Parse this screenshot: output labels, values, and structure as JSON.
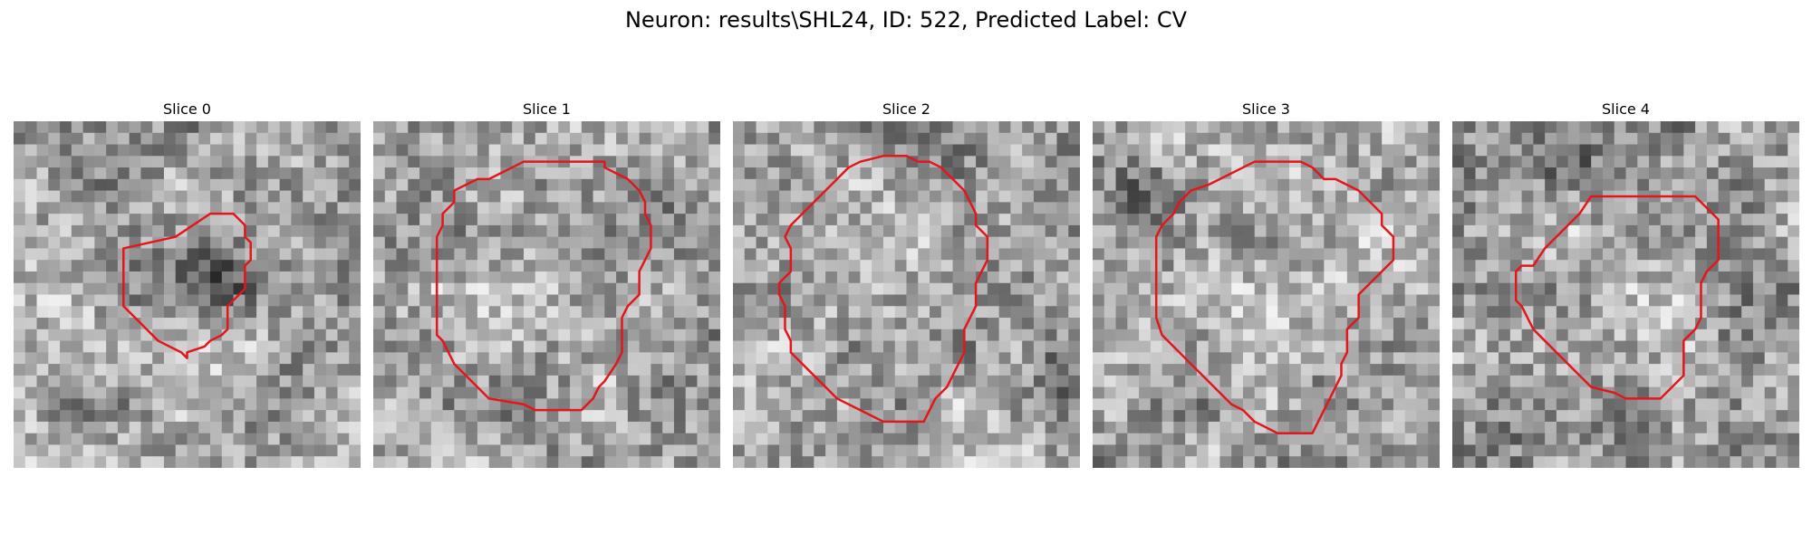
{
  "figure": {
    "title": "Neuron: results\\SHL24, ID: 522, Predicted Label: CV"
  },
  "colors": {
    "contour": "#e3161b"
  },
  "grid": {
    "cells": 30
  },
  "slices": [
    {
      "title": "Slice 0",
      "seed": 11,
      "dark_center": [
        0.55,
        0.42
      ],
      "dark_strength": 0.35,
      "contour": [
        [
          14,
          10
        ],
        [
          17,
          8
        ],
        [
          19,
          8
        ],
        [
          19.5,
          8.5
        ],
        [
          20,
          9
        ],
        [
          20,
          10
        ],
        [
          20.5,
          10.5
        ],
        [
          20.5,
          12
        ],
        [
          20,
          12.5
        ],
        [
          20,
          14.5
        ],
        [
          19.5,
          15
        ],
        [
          19,
          15.5
        ],
        [
          18.5,
          16
        ],
        [
          18.5,
          18
        ],
        [
          18,
          18.5
        ],
        [
          17,
          19
        ],
        [
          16.5,
          19.5
        ],
        [
          15,
          20
        ],
        [
          15,
          20.5
        ],
        [
          14.5,
          20
        ],
        [
          13.5,
          19.5
        ],
        [
          12.5,
          19
        ],
        [
          12,
          18.5
        ],
        [
          11,
          17.5
        ],
        [
          10,
          16.5
        ],
        [
          9.5,
          16
        ],
        [
          9.5,
          11
        ]
      ]
    },
    {
      "title": "Slice 1",
      "seed": 23,
      "dark_center": [
        0.45,
        0.75
      ],
      "dark_strength": 0.12,
      "contour": [
        [
          12,
          4
        ],
        [
          13,
          3.5
        ],
        [
          20,
          3.5
        ],
        [
          20,
          4
        ],
        [
          21,
          4.5
        ],
        [
          22,
          5
        ],
        [
          23,
          6
        ],
        [
          23.5,
          7
        ],
        [
          23.5,
          8
        ],
        [
          24,
          9
        ],
        [
          24,
          11
        ],
        [
          23.5,
          12
        ],
        [
          23,
          13
        ],
        [
          23,
          15
        ],
        [
          22,
          16
        ],
        [
          21.5,
          17
        ],
        [
          21.5,
          20
        ],
        [
          21,
          21
        ],
        [
          20,
          22.5
        ],
        [
          19.5,
          23
        ],
        [
          19,
          24
        ],
        [
          18.5,
          24.5
        ],
        [
          18,
          25
        ],
        [
          14,
          25
        ],
        [
          13,
          24.5
        ],
        [
          10,
          24
        ],
        [
          9,
          23
        ],
        [
          7,
          21
        ],
        [
          6.5,
          20
        ],
        [
          6,
          19
        ],
        [
          5.5,
          18.5
        ],
        [
          5.5,
          10
        ],
        [
          6,
          9
        ],
        [
          6,
          8
        ],
        [
          7,
          7
        ],
        [
          7,
          6
        ],
        [
          8,
          5.5
        ],
        [
          9,
          5
        ],
        [
          10,
          5
        ],
        [
          11,
          4.5
        ]
      ]
    },
    {
      "title": "Slice 2",
      "seed": 37,
      "dark_center": [
        0.93,
        0.65
      ],
      "dark_strength": 0.25,
      "contour": [
        [
          11,
          3.5
        ],
        [
          13,
          3
        ],
        [
          15,
          3
        ],
        [
          16,
          3.5
        ],
        [
          17,
          3.5
        ],
        [
          18,
          4
        ],
        [
          18.5,
          4.5
        ],
        [
          19,
          5
        ],
        [
          20,
          6
        ],
        [
          20.5,
          7
        ],
        [
          21,
          8
        ],
        [
          21,
          9
        ],
        [
          22,
          10
        ],
        [
          22,
          12
        ],
        [
          21.5,
          13
        ],
        [
          21,
          14
        ],
        [
          21,
          16
        ],
        [
          20.5,
          17
        ],
        [
          20,
          18
        ],
        [
          20,
          20
        ],
        [
          19.5,
          21
        ],
        [
          19,
          22
        ],
        [
          18.5,
          23
        ],
        [
          17.5,
          24
        ],
        [
          17,
          25
        ],
        [
          16.5,
          26
        ],
        [
          13,
          26
        ],
        [
          12,
          25.5
        ],
        [
          11,
          25
        ],
        [
          10,
          24.5
        ],
        [
          9,
          24
        ],
        [
          7,
          22
        ],
        [
          6,
          21
        ],
        [
          5,
          20
        ],
        [
          5,
          19
        ],
        [
          4.5,
          18
        ],
        [
          4.5,
          16
        ],
        [
          4,
          15
        ],
        [
          4,
          14
        ],
        [
          5,
          13
        ],
        [
          5,
          11
        ],
        [
          4.5,
          10
        ],
        [
          5,
          9
        ],
        [
          6,
          8
        ],
        [
          7,
          7
        ],
        [
          8,
          6
        ],
        [
          9,
          5
        ],
        [
          10,
          4
        ]
      ]
    },
    {
      "title": "Slice 3",
      "seed": 51,
      "dark_center": [
        0.12,
        0.2
      ],
      "dark_strength": 0.2,
      "contour": [
        [
          11,
          5
        ],
        [
          12,
          4.5
        ],
        [
          13,
          4
        ],
        [
          14,
          3.5
        ],
        [
          18,
          3.5
        ],
        [
          19,
          4
        ],
        [
          20,
          5
        ],
        [
          21,
          5
        ],
        [
          22,
          5.5
        ],
        [
          23,
          6
        ],
        [
          25,
          8
        ],
        [
          25,
          9
        ],
        [
          26,
          10
        ],
        [
          26,
          12
        ],
        [
          25,
          13
        ],
        [
          24,
          14
        ],
        [
          23,
          15
        ],
        [
          23,
          17
        ],
        [
          22,
          18
        ],
        [
          22,
          20
        ],
        [
          21.5,
          21
        ],
        [
          21.5,
          22
        ],
        [
          21,
          23
        ],
        [
          20.5,
          24
        ],
        [
          20,
          25
        ],
        [
          19.5,
          26
        ],
        [
          19,
          27
        ],
        [
          16,
          27
        ],
        [
          15,
          26.5
        ],
        [
          14,
          26
        ],
        [
          13,
          25
        ],
        [
          12,
          24.5
        ],
        [
          11,
          23.5
        ],
        [
          10,
          22.5
        ],
        [
          9,
          21.5
        ],
        [
          8,
          20.5
        ],
        [
          7,
          19.5
        ],
        [
          6,
          18.5
        ],
        [
          5.5,
          17
        ],
        [
          5.5,
          10
        ],
        [
          6,
          9
        ],
        [
          7,
          8
        ],
        [
          7.5,
          7
        ],
        [
          8.5,
          6
        ],
        [
          10,
          5.5
        ]
      ]
    },
    {
      "title": "Slice 4",
      "seed": 67,
      "dark_center": [
        0.3,
        0.08
      ],
      "dark_strength": 0.28,
      "contour": [
        [
          12,
          6.5
        ],
        [
          21,
          6.5
        ],
        [
          21.5,
          7
        ],
        [
          22,
          7.5
        ],
        [
          22.5,
          8
        ],
        [
          23,
          8.5
        ],
        [
          23,
          12
        ],
        [
          22,
          13
        ],
        [
          21.5,
          14
        ],
        [
          21.5,
          17
        ],
        [
          21,
          18
        ],
        [
          20.5,
          18.5
        ],
        [
          20,
          19
        ],
        [
          20,
          22
        ],
        [
          19,
          23
        ],
        [
          18,
          24
        ],
        [
          15,
          24
        ],
        [
          14,
          23.5
        ],
        [
          12,
          23
        ],
        [
          10,
          21
        ],
        [
          9,
          20
        ],
        [
          8,
          19
        ],
        [
          7,
          18
        ],
        [
          6.5,
          17
        ],
        [
          6,
          16
        ],
        [
          5.5,
          15.5
        ],
        [
          5.5,
          13
        ],
        [
          6,
          12.5
        ],
        [
          7,
          12.5
        ],
        [
          8,
          11
        ],
        [
          9,
          10
        ],
        [
          10,
          9
        ],
        [
          11,
          8
        ]
      ]
    }
  ]
}
